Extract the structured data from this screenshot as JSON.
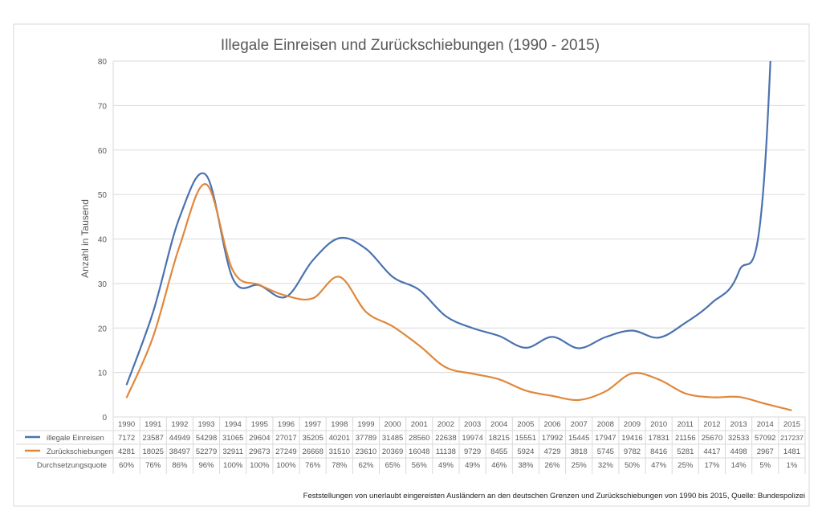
{
  "chart_data": {
    "type": "line",
    "title": "Illegale Einreisen und Zurückschiebungen  (1990 - 2015)",
    "ylabel": "Anzahl in Tausend",
    "xlabel": "",
    "ylim": [
      0,
      80
    ],
    "yticks": [
      0,
      10,
      20,
      30,
      40,
      50,
      60,
      70,
      80
    ],
    "grid": true,
    "categories": [
      "1990",
      "1991",
      "1992",
      "1993",
      "1994",
      "1995",
      "1996",
      "1997",
      "1998",
      "1999",
      "2000",
      "2001",
      "2002",
      "2003",
      "2004",
      "2005",
      "2006",
      "2007",
      "2008",
      "2009",
      "2010",
      "2011",
      "2012",
      "2013",
      "2014",
      "2015"
    ],
    "series": [
      {
        "name": "illegale Einreisen",
        "color": "#4a72b0",
        "values": [
          7172,
          23587,
          44949,
          54298,
          31065,
          29604,
          27017,
          35205,
          40201,
          37789,
          31485,
          28560,
          22638,
          19974,
          18215,
          15551,
          17992,
          15445,
          17947,
          19416,
          17831,
          21156,
          25670,
          32533,
          57092,
          217237
        ]
      },
      {
        "name": "Zurückschiebungen",
        "color": "#e0873a",
        "values": [
          4281,
          18025,
          38497,
          52279,
          32911,
          29673,
          27249,
          26668,
          31510,
          23610,
          20369,
          16048,
          11138,
          9729,
          8455,
          5924,
          4729,
          3818,
          5745,
          9782,
          8416,
          5281,
          4417,
          4498,
          2967,
          1481
        ]
      }
    ],
    "table_extra_row": {
      "name": "Durchsetzungsquote",
      "values": [
        "60%",
        "76%",
        "86%",
        "96%",
        "100%",
        "100%",
        "100%",
        "76%",
        "78%",
        "62%",
        "65%",
        "56%",
        "49%",
        "49%",
        "46%",
        "38%",
        "26%",
        "25%",
        "32%",
        "50%",
        "47%",
        "25%",
        "17%",
        "14%",
        "5%",
        "1%"
      ]
    },
    "value_scale": "values in persons; plotted in thousands",
    "footnote": "Feststellungen von unerlaubt eingereisten Ausländern an den deutschen Grenzen und Zurückschiebungen von 1990 bis 2015, Quelle: Bundespolizei"
  }
}
